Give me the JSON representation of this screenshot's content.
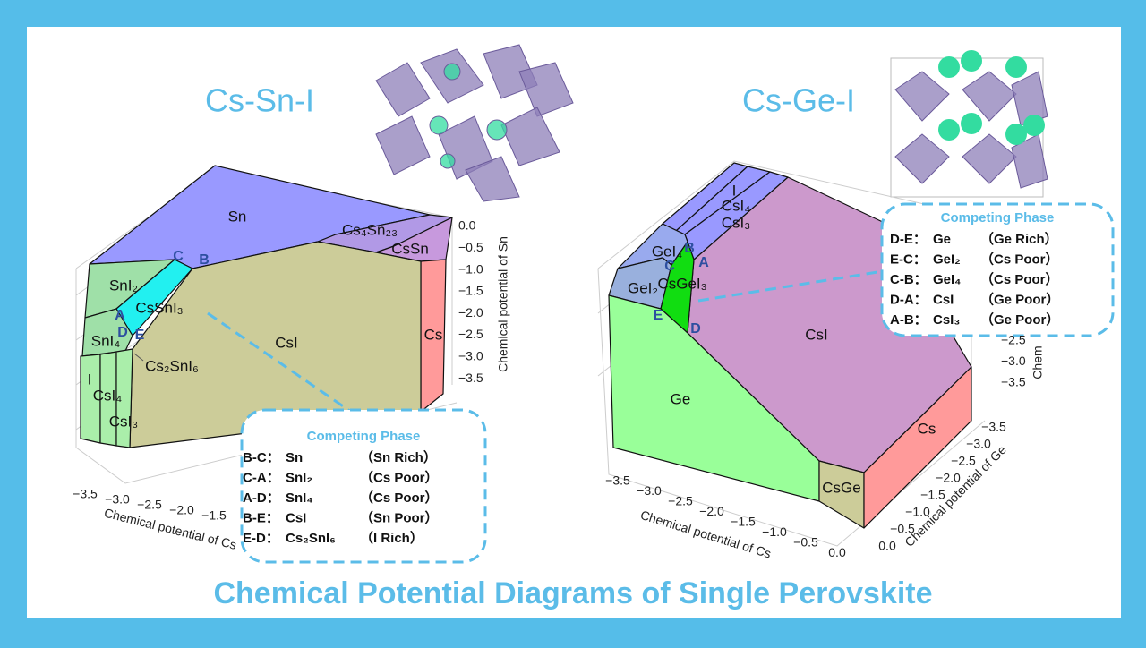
{
  "title": "Chemical Potential Diagrams of Single Perovskite",
  "panels": [
    {
      "title": "Cs-Sn-I",
      "regions": [
        "Sn",
        "Cs₄Sn₂₃",
        "CsSn",
        "SnI₂",
        "CsSnI₃",
        "SnI₄",
        "Cs₂SnI₆",
        "CsI",
        "Cs",
        "I",
        "CsI₄",
        "CsI₃"
      ],
      "points": [
        "C",
        "B",
        "A",
        "D",
        "E"
      ],
      "z_ticks": [
        "0.0",
        "−0.5",
        "−1.0",
        "−1.5",
        "−2.0",
        "−2.5",
        "−3.0",
        "−3.5"
      ],
      "z_label": "Chemical potential of Sn",
      "x_ticks": [
        "−3.5",
        "−3.0",
        "−2.5",
        "−2.0",
        "−1.5"
      ],
      "x_label": "Chemical potential of Cs",
      "legend": {
        "title": "Competing Phase",
        "rows": [
          {
            "pair": "B-C：",
            "phase": "Sn",
            "condition": "（Sn Rich）"
          },
          {
            "pair": "C-A：",
            "phase": "SnI₂",
            "condition": "（Cs Poor）"
          },
          {
            "pair": "A-D：",
            "phase": "SnI₄",
            "condition": "（Cs Poor）"
          },
          {
            "pair": "B-E：",
            "phase": "CsI",
            "condition": "（Sn Poor）"
          },
          {
            "pair": "E-D：",
            "phase": "Cs₂SnI₆",
            "condition": "（I Rich）"
          }
        ]
      }
    },
    {
      "title": "Cs-Ge-I",
      "regions": [
        "I",
        "CsI₄",
        "CsI₃",
        "GeI₄",
        "GeI₂",
        "CsGeI₃",
        "CsI",
        "Ge",
        "Cs",
        "CsGe"
      ],
      "points": [
        "B",
        "C",
        "A",
        "E",
        "D"
      ],
      "z_ticks": [
        "−2.5",
        "−3.0",
        "−3.5"
      ],
      "z_label": "Chem",
      "y_ticks": [
        "−3.5",
        "−3.0",
        "−2.5",
        "−2.0",
        "−1.5",
        "−1.0",
        "−0.5",
        "0.0"
      ],
      "y_label": "Chemical potential of Ge",
      "x_ticks": [
        "−3.5",
        "−3.0",
        "−2.5",
        "−2.0",
        "−1.5",
        "−1.0",
        "−0.5",
        "0.0"
      ],
      "x_label": "Chemical potential of Cs",
      "legend": {
        "title": "Competing Phase",
        "rows": [
          {
            "pair": "D-E：",
            "phase": "Ge",
            "condition": "（Ge Rich）"
          },
          {
            "pair": "E-C：",
            "phase": "GeI₂",
            "condition": "（Cs Poor）"
          },
          {
            "pair": "C-B：",
            "phase": "GeI₄",
            "condition": "（Cs Poor）"
          },
          {
            "pair": "D-A：",
            "phase": "CsI",
            "condition": "（Ge Poor）"
          },
          {
            "pair": "A-B：",
            "phase": "CsI₃",
            "condition": "（Ge Poor）"
          }
        ]
      }
    }
  ]
}
